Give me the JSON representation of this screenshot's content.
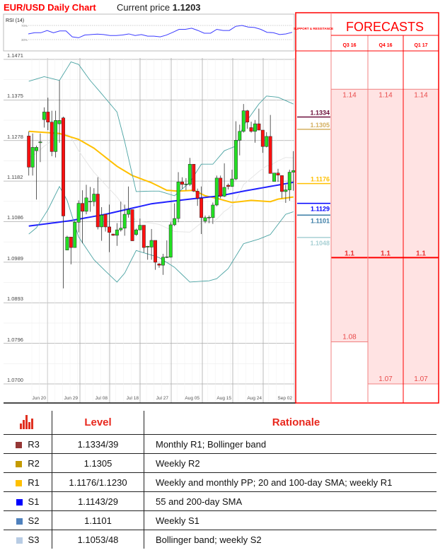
{
  "header": {
    "title": "EUR/USD Daily Chart",
    "current_price_label": "Current price",
    "current_price": "1.1203"
  },
  "rsi": {
    "label": "RSI (14)",
    "upper_label": "70%",
    "lower_label": "30%",
    "upper": 70,
    "lower": 30,
    "values": [
      46.1,
      49.4,
      49.4,
      55.8,
      49.4,
      54.5,
      54.5,
      37.7,
      35.2,
      42.9,
      44.2,
      45.5,
      44.2,
      41.6,
      41.6,
      42.9,
      46.1,
      41.6,
      44.2,
      39.7,
      39.7,
      37.7,
      42.9,
      50.6,
      59.0,
      59.0,
      62.3,
      55.8,
      48.1,
      48.1,
      59.0,
      55.8,
      55.8,
      67.4,
      70.0,
      65.5,
      64.2,
      59.0,
      50.6,
      49.4,
      44.2,
      46.1,
      50.6
    ],
    "color": "#3b3bff"
  },
  "chart_data": {
    "type": "candlestick",
    "title": "EUR/USD Daily Chart",
    "ylim": [
      1.07,
      1.1471
    ],
    "y_ticks": [
      "1.1471",
      "1.1375",
      "1.1278",
      "1.1182",
      "1.1086",
      "1.0989",
      "1.0893",
      "1.0796",
      "1.0700"
    ],
    "x_ticks": [
      "Jun 20",
      "Jun 29",
      "Jul 08",
      "Jul 18",
      "Jul 27",
      "Aug 05",
      "Aug 15",
      "Aug 24",
      "Sep 02"
    ],
    "grid": true,
    "candles_ohlc": [
      [
        1.1289,
        1.13,
        1.1195,
        1.1215
      ],
      [
        1.1215,
        1.1295,
        1.1195,
        1.1262
      ],
      [
        1.1254,
        1.1266,
        1.1138,
        1.1262
      ],
      [
        1.1273,
        1.1295,
        1.1227,
        1.1275
      ],
      [
        1.1328,
        1.1357,
        1.1309,
        1.1346
      ],
      [
        1.1346,
        1.138,
        1.1303,
        1.1322
      ],
      [
        1.1322,
        1.1349,
        1.1241,
        1.1252
      ],
      [
        1.1252,
        1.1349,
        1.1238,
        1.1326
      ],
      [
        1.1318,
        1.1421,
        1.1273,
        1.1326
      ],
      [
        1.1332,
        1.1335,
        1.0927,
        1.1099
      ],
      [
        1.1018,
        1.1052,
        1.1018,
        1.1049
      ],
      [
        1.1049,
        1.1049,
        1.0984,
        1.1024
      ],
      [
        1.1024,
        1.1087,
        1.1024,
        1.1084
      ],
      [
        1.1084,
        1.1136,
        1.106,
        1.1129
      ],
      [
        1.1129,
        1.116,
        1.1034,
        1.111
      ],
      [
        1.111,
        1.1173,
        1.1103,
        1.1142
      ],
      [
        1.1133,
        1.1168,
        1.1109,
        1.1134
      ],
      [
        1.1133,
        1.1165,
        1.1122,
        1.1151
      ],
      [
        1.1151,
        1.1191,
        1.1067,
        1.1073
      ],
      [
        1.1073,
        1.112,
        1.104,
        1.1101
      ],
      [
        1.1103,
        1.1103,
        1.1062,
        1.1073
      ],
      [
        1.1073,
        1.1126,
        1.1013,
        1.106
      ],
      [
        1.1056,
        1.1057,
        1.1052,
        1.1053
      ],
      [
        1.1053,
        1.1082,
        1.1028,
        1.1066
      ],
      [
        1.1066,
        1.1133,
        1.1062,
        1.107
      ],
      [
        1.107,
        1.1126,
        1.1052,
        1.1103
      ],
      [
        1.1103,
        1.1169,
        1.1095,
        1.1114
      ],
      [
        1.1114,
        1.1114,
        1.104,
        1.104
      ],
      [
        1.1055,
        1.1069,
        1.1052,
        1.1066
      ],
      [
        1.1066,
        1.1093,
        1.1065,
        1.1077
      ],
      [
        1.1077,
        1.1077,
        1.1012,
        1.1024
      ],
      [
        1.1025,
        1.1028,
        1.0995,
        1.1027
      ],
      [
        1.1025,
        1.1068,
        1.0995,
        1.1041
      ],
      [
        1.1041,
        1.1041,
        1.0971,
        1.0989
      ],
      [
        1.0985,
        1.0987,
        1.0976,
        1.0982
      ],
      [
        1.0982,
        1.1009,
        1.0959,
        1.1001
      ],
      [
        1.1001,
        1.1041,
        1.0999,
        1.1002
      ],
      [
        1.1001,
        1.1084,
        1.1,
        1.1078
      ],
      [
        1.1078,
        1.1129,
        1.1075,
        1.1093
      ],
      [
        1.1093,
        1.1203,
        1.1084,
        1.118
      ],
      [
        1.118,
        1.1191,
        1.1164,
        1.1174
      ],
      [
        1.1174,
        1.1189,
        1.116,
        1.1175
      ],
      [
        1.1174,
        1.1237,
        1.117,
        1.1222
      ],
      [
        1.1222,
        1.1222,
        1.1156,
        1.1158
      ],
      [
        1.1158,
        1.1164,
        1.1123,
        1.1141
      ],
      [
        1.1141,
        1.1169,
        1.1056,
        1.1095
      ],
      [
        1.1087,
        1.11,
        1.1082,
        1.1095
      ],
      [
        1.1095,
        1.11,
        1.1082,
        1.1096
      ],
      [
        1.1095,
        1.1131,
        1.108,
        1.1125
      ],
      [
        1.1125,
        1.1195,
        1.1122,
        1.1189
      ],
      [
        1.1189,
        1.1195,
        1.1141,
        1.1146
      ],
      [
        1.1146,
        1.1224,
        1.1144,
        1.1167
      ],
      [
        1.1172,
        1.1176,
        1.1162,
        1.1169
      ],
      [
        1.1169,
        1.1209,
        1.1168,
        1.1187
      ],
      [
        1.1187,
        1.1324,
        1.1184,
        1.1279
      ],
      [
        1.1279,
        1.1316,
        1.1243,
        1.13
      ],
      [
        1.13,
        1.1365,
        1.1297,
        1.1349
      ],
      [
        1.1349,
        1.1351,
        1.1306,
        1.1322
      ],
      [
        1.1309,
        1.1323,
        1.1297,
        1.13
      ],
      [
        1.13,
        1.1327,
        1.1273,
        1.1318
      ],
      [
        1.1318,
        1.1354,
        1.1303,
        1.1303
      ],
      [
        1.1303,
        1.1303,
        1.1249,
        1.1264
      ],
      [
        1.1264,
        1.1298,
        1.1262,
        1.1288
      ],
      [
        1.1288,
        1.1339,
        1.12,
        1.12
      ],
      [
        1.1181,
        1.1201,
        1.1181,
        1.1201
      ],
      [
        1.1201,
        1.1211,
        1.118,
        1.1196
      ],
      [
        1.1195,
        1.1195,
        1.1141,
        1.1157
      ],
      [
        1.1157,
        1.1173,
        1.113,
        1.1161
      ],
      [
        1.1161,
        1.1209,
        1.1135,
        1.1203
      ],
      [
        1.1203,
        1.1253,
        1.1159,
        1.1207
      ]
    ],
    "overlays": [
      {
        "color": "#ffc000",
        "points": [
          [
            1,
            1.13
          ],
          [
            9,
            1.1295
          ],
          [
            14,
            1.1281
          ],
          [
            18,
            1.126
          ],
          [
            24,
            1.1217
          ],
          [
            28,
            1.1195
          ],
          [
            33,
            1.1178
          ],
          [
            37,
            1.116
          ],
          [
            40,
            1.1158
          ],
          [
            44,
            1.116
          ],
          [
            47,
            1.1147
          ],
          [
            50,
            1.1141
          ],
          [
            54,
            1.1131
          ],
          [
            59,
            1.1136
          ],
          [
            64,
            1.1133
          ],
          [
            66,
            1.1139
          ],
          [
            70,
            1.1144
          ]
        ]
      },
      {
        "color": "#2020ff",
        "points": [
          [
            1,
            1.1075
          ],
          [
            12,
            1.1088
          ],
          [
            21,
            1.1103
          ],
          [
            33,
            1.1128
          ],
          [
            42,
            1.1138
          ],
          [
            51,
            1.1147
          ],
          [
            57,
            1.1158
          ],
          [
            62,
            1.1166
          ],
          [
            70,
            1.1179
          ]
        ]
      },
      {
        "color": "#4aa3a3",
        "points": [
          [
            1,
            1.1419
          ],
          [
            5,
            1.143
          ],
          [
            9,
            1.1421
          ],
          [
            12,
            1.1465
          ],
          [
            14,
            1.1459
          ],
          [
            17,
            1.1421
          ],
          [
            19,
            1.14
          ],
          [
            24,
            1.1346
          ],
          [
            26,
            1.1276
          ],
          [
            29,
            1.1157
          ],
          [
            33,
            1.1158
          ],
          [
            35,
            1.1158
          ],
          [
            39,
            1.1147
          ],
          [
            43,
            1.1179
          ],
          [
            46,
            1.1222
          ],
          [
            49,
            1.1222
          ],
          [
            52,
            1.1254
          ],
          [
            55,
            1.1265
          ],
          [
            57,
            1.1314
          ],
          [
            61,
            1.1365
          ],
          [
            63,
            1.1384
          ],
          [
            66,
            1.1381
          ],
          [
            70,
            1.1365
          ]
        ]
      },
      {
        "color": "#4aa3a3",
        "points": [
          [
            1,
            1.1056
          ],
          [
            3,
            1.1071
          ],
          [
            6,
            1.1114
          ],
          [
            9,
            1.1169
          ],
          [
            11,
            1.1136
          ],
          [
            14,
            1.1049
          ],
          [
            18,
            1.0995
          ],
          [
            21,
            1.0968
          ],
          [
            24,
            1.0942
          ],
          [
            26,
            1.0963
          ],
          [
            29,
            1.1017
          ],
          [
            33,
            1.1006
          ],
          [
            35,
            1.1
          ],
          [
            39,
            1.0977
          ],
          [
            43,
            1.0942
          ],
          [
            48,
            1.0945
          ],
          [
            50,
            1.095
          ],
          [
            53,
            1.0974
          ],
          [
            57,
            1.1033
          ],
          [
            61,
            1.1044
          ],
          [
            64,
            1.1055
          ],
          [
            68,
            1.1103
          ],
          [
            70,
            1.1109
          ]
        ]
      }
    ],
    "up_color": "#22e022",
    "down_color": "#ff1010"
  },
  "support_resistance": {
    "header": "SUPPORT & RESISTANCE",
    "levels": [
      {
        "value": "1.1334",
        "color": "#6b0f3a"
      },
      {
        "value": "1.1305",
        "color": "#d4b060"
      },
      {
        "value": "1.1176",
        "color": "#ffc000"
      },
      {
        "value": "1.1129",
        "color": "#0000ff"
      },
      {
        "value": "1.1101",
        "color": "#3a7ca5"
      },
      {
        "value": "1.1048",
        "color": "#a8d0d4"
      }
    ]
  },
  "forecasts": {
    "title": "FORECASTS",
    "columns": [
      {
        "quarter": "Q3 16",
        "high": "1.14",
        "mid": "1.1",
        "low": "1.08"
      },
      {
        "quarter": "Q4 16",
        "high": "1.14",
        "mid": "1.1",
        "low": "1.07"
      },
      {
        "quarter": "Q1 17",
        "high": "1.14",
        "mid": "1.1",
        "low": "1.07"
      }
    ],
    "accent": "#ff0000",
    "fill": "#ffe3e3"
  },
  "table": {
    "headers": {
      "level": "Level",
      "rationale": "Rationale"
    },
    "rows": [
      {
        "id": "R3",
        "level": "1.1334/39",
        "rationale": "Monthly R1; Bollinger band",
        "color": "#953735"
      },
      {
        "id": "R2",
        "level": "1.1305",
        "rationale": "Weekly R2",
        "color": "#c49a00"
      },
      {
        "id": "R1",
        "level": "1.1176/1.1230",
        "rationale": "Weekly and monthly PP; 20 and 100-day SMA; weekly R1",
        "color": "#ffc000"
      },
      {
        "id": "S1",
        "level": "1.1143/29",
        "rationale": "55 and 200-day SMA",
        "color": "#0000ff"
      },
      {
        "id": "S2",
        "level": "1.1101",
        "rationale": "Weekly S1",
        "color": "#4f81bd"
      },
      {
        "id": "S3",
        "level": "1.1053/48",
        "rationale": "Bollinger band; weekly S2",
        "color": "#b8cce4"
      }
    ]
  }
}
